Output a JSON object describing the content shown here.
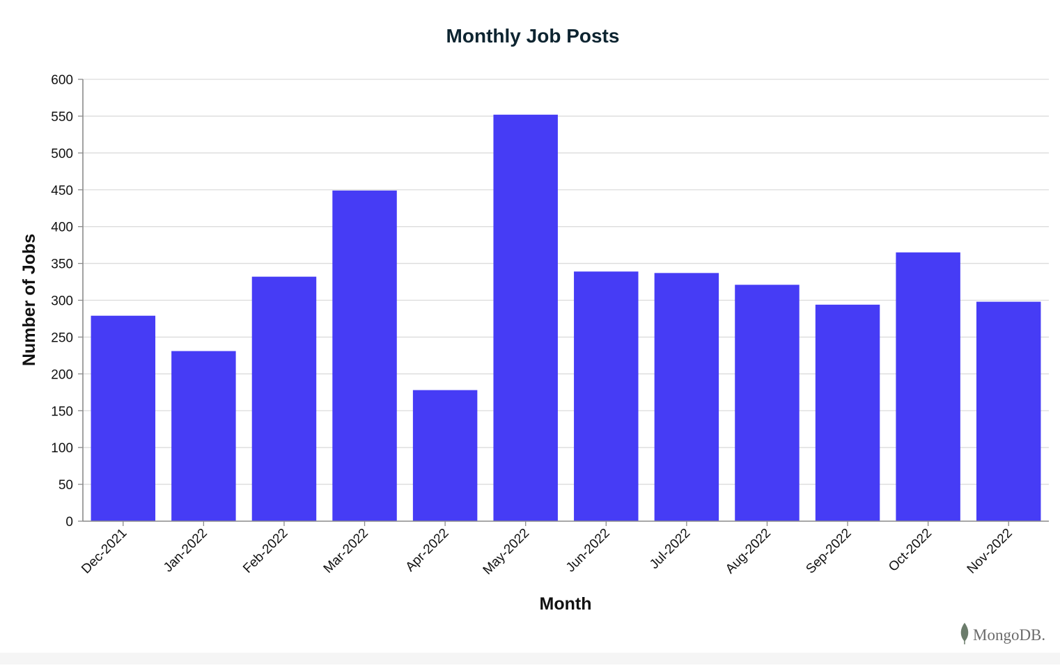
{
  "chart_data": {
    "type": "bar",
    "title": "Monthly Job Posts",
    "xlabel": "Month",
    "ylabel": "Number of Jobs",
    "categories": [
      "Dec-2021",
      "Jan-2022",
      "Feb-2022",
      "Mar-2022",
      "Apr-2022",
      "May-2022",
      "Jun-2022",
      "Jul-2022",
      "Aug-2022",
      "Sep-2022",
      "Oct-2022",
      "Nov-2022"
    ],
    "values": [
      279,
      231,
      332,
      449,
      178,
      552,
      339,
      337,
      321,
      294,
      365,
      298
    ],
    "ylim": [
      0,
      600
    ],
    "yticks": [
      0,
      50,
      100,
      150,
      200,
      250,
      300,
      350,
      400,
      450,
      500,
      550,
      600
    ],
    "grid": true,
    "bar_color": "#463cf5",
    "legend": "none"
  },
  "branding": {
    "logo_text": "MongoDB.",
    "leaf_color": "#6b7c6b"
  }
}
